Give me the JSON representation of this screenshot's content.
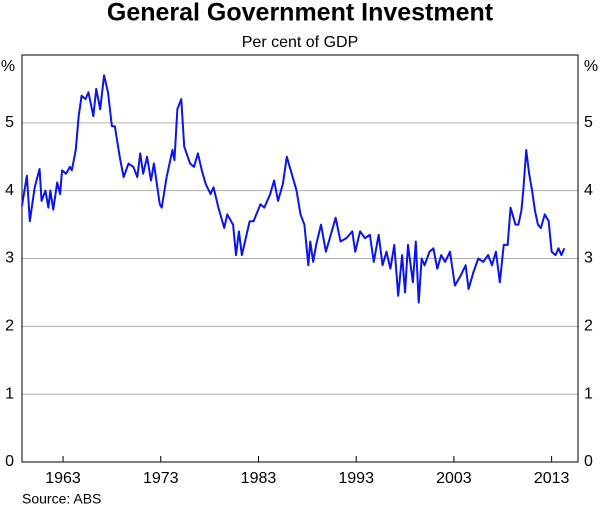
{
  "chart_data": {
    "type": "line",
    "title": "General Government Investment",
    "subtitle": "Per cent of GDP",
    "y_unit_left": "%",
    "y_unit_right": "%",
    "source": "Source: ABS",
    "x": [
      1958.8,
      1959.3,
      1959.6,
      1960.1,
      1960.6,
      1960.8,
      1961.2,
      1961.5,
      1961.7,
      1962.0,
      1962.4,
      1962.7,
      1962.9,
      1963.3,
      1963.7,
      1963.9,
      1964.3,
      1964.6,
      1964.9,
      1965.3,
      1965.6,
      1966.1,
      1966.4,
      1966.8,
      1967.2,
      1967.6,
      1968.0,
      1968.3,
      1968.8,
      1969.2,
      1969.7,
      1970.2,
      1970.6,
      1970.9,
      1971.2,
      1971.6,
      1972.0,
      1972.3,
      1972.9,
      1973.1,
      1973.6,
      1974.2,
      1974.4,
      1974.7,
      1975.1,
      1975.4,
      1976.0,
      1976.4,
      1976.8,
      1977.2,
      1977.6,
      1978.1,
      1978.4,
      1978.9,
      1979.5,
      1979.8,
      1980.4,
      1980.7,
      1981.0,
      1981.3,
      1981.7,
      1982.1,
      1982.5,
      1983.2,
      1983.6,
      1984.2,
      1984.6,
      1985.0,
      1985.5,
      1985.9,
      1986.3,
      1986.9,
      1987.3,
      1987.7,
      1988.1,
      1988.3,
      1988.6,
      1988.9,
      1989.4,
      1989.9,
      1990.3,
      1990.9,
      1991.4,
      1992.0,
      1992.6,
      1992.9,
      1993.4,
      1993.9,
      1994.4,
      1994.8,
      1995.3,
      1995.7,
      1996.1,
      1996.5,
      1996.9,
      1997.3,
      1997.7,
      1998.0,
      1998.3,
      1998.8,
      1999.1,
      1999.4,
      1999.7,
      2000.0,
      2000.5,
      2000.9,
      2001.3,
      2001.7,
      2002.1,
      2002.6,
      2003.1,
      2003.7,
      2004.2,
      2004.5,
      2005.0,
      2005.5,
      2006.0,
      2006.5,
      2006.9,
      2007.3,
      2007.7,
      2008.1,
      2008.5,
      2008.8,
      2009.3,
      2009.6,
      2009.9,
      2010.1,
      2010.4,
      2010.7,
      2011.0,
      2011.3,
      2011.6,
      2011.9,
      2012.3,
      2012.7,
      2013.0,
      2013.4,
      2013.7,
      2014.0,
      2014.3
    ],
    "series": [
      {
        "color": "#0a14f0",
        "values": [
          3.78,
          4.22,
          3.55,
          4.05,
          4.32,
          3.85,
          4.0,
          3.75,
          4.0,
          3.72,
          4.12,
          3.95,
          4.3,
          4.25,
          4.35,
          4.3,
          4.6,
          5.1,
          5.4,
          5.35,
          5.45,
          5.1,
          5.5,
          5.2,
          5.7,
          5.45,
          4.95,
          4.95,
          4.5,
          4.2,
          4.4,
          4.35,
          4.2,
          4.55,
          4.25,
          4.5,
          4.15,
          4.4,
          3.8,
          3.75,
          4.2,
          4.6,
          4.45,
          5.2,
          5.35,
          4.65,
          4.4,
          4.35,
          4.55,
          4.3,
          4.1,
          3.95,
          4.05,
          3.75,
          3.45,
          3.65,
          3.5,
          3.05,
          3.4,
          3.05,
          3.3,
          3.55,
          3.55,
          3.8,
          3.75,
          3.95,
          4.15,
          3.85,
          4.1,
          4.5,
          4.3,
          4.0,
          3.65,
          3.5,
          2.9,
          3.25,
          2.95,
          3.2,
          3.5,
          3.1,
          3.3,
          3.6,
          3.25,
          3.3,
          3.4,
          3.1,
          3.4,
          3.3,
          3.35,
          2.95,
          3.35,
          2.9,
          3.1,
          2.85,
          3.2,
          2.45,
          3.05,
          2.5,
          3.2,
          2.65,
          3.25,
          2.35,
          3.0,
          2.9,
          3.1,
          3.15,
          2.85,
          3.05,
          2.95,
          3.1,
          2.6,
          2.75,
          2.9,
          2.55,
          2.8,
          3.0,
          2.95,
          3.05,
          2.9,
          3.1,
          2.65,
          3.2,
          3.2,
          3.75,
          3.5,
          3.5,
          3.7,
          4.0,
          4.6,
          4.25,
          4.0,
          3.7,
          3.5,
          3.45,
          3.65,
          3.55,
          3.1,
          3.05,
          3.15,
          3.05,
          3.15
        ]
      }
    ],
    "xlim": [
      1958.8,
      2015.7
    ],
    "xticks": [
      1963,
      1973,
      1983,
      1993,
      2003,
      2013
    ],
    "ylim": [
      0,
      6
    ],
    "yticks": [
      0,
      1,
      2,
      3,
      4,
      5
    ],
    "grid": true
  }
}
